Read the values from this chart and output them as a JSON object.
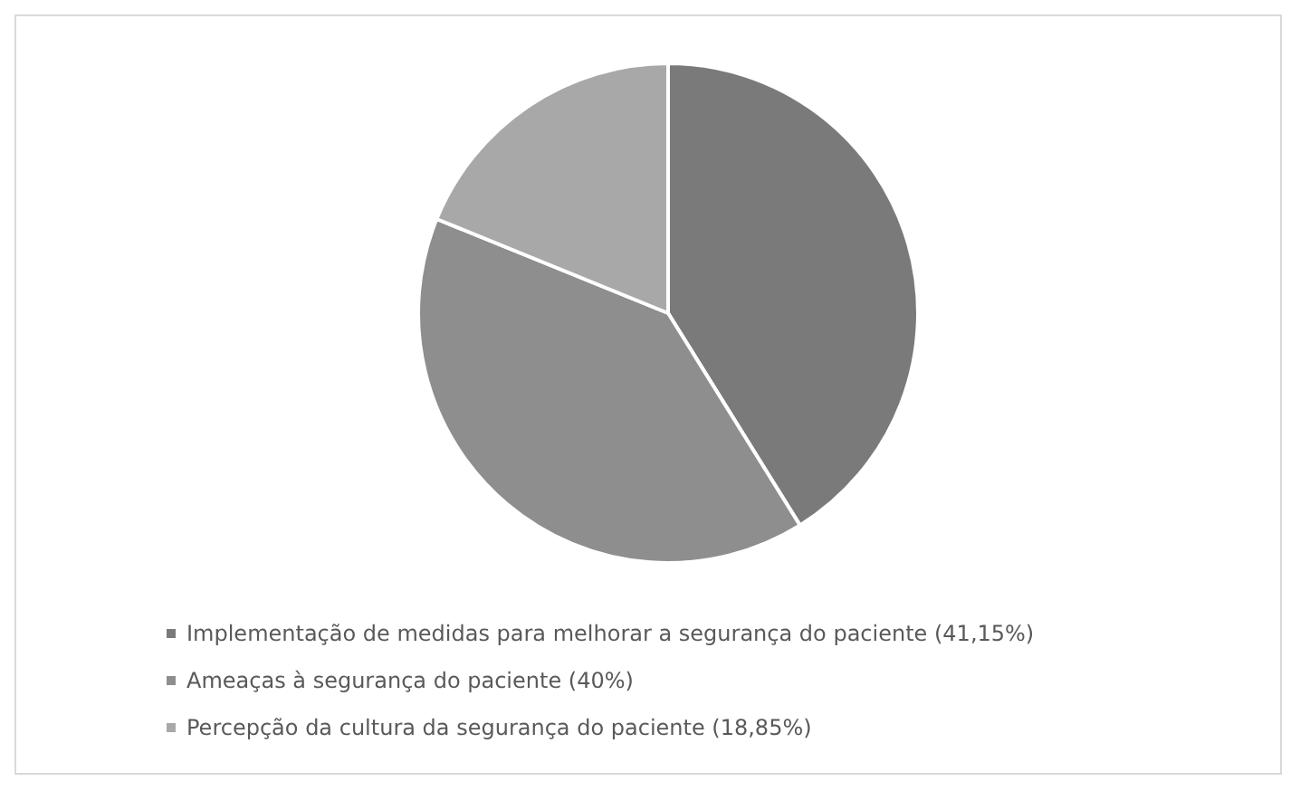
{
  "chart_data": {
    "type": "pie",
    "categories": [
      "Implementação de medidas para melhorar a segurança do paciente (41,15%)",
      "Ameaças à segurança do paciente (40%)",
      "Percepção da cultura da segurança do paciente (18,85%)"
    ],
    "values": [
      41.15,
      40,
      18.85
    ],
    "colors": [
      "#7a7a7a",
      "#8e8e8e",
      "#a8a8a8"
    ],
    "legend": "bottom"
  }
}
